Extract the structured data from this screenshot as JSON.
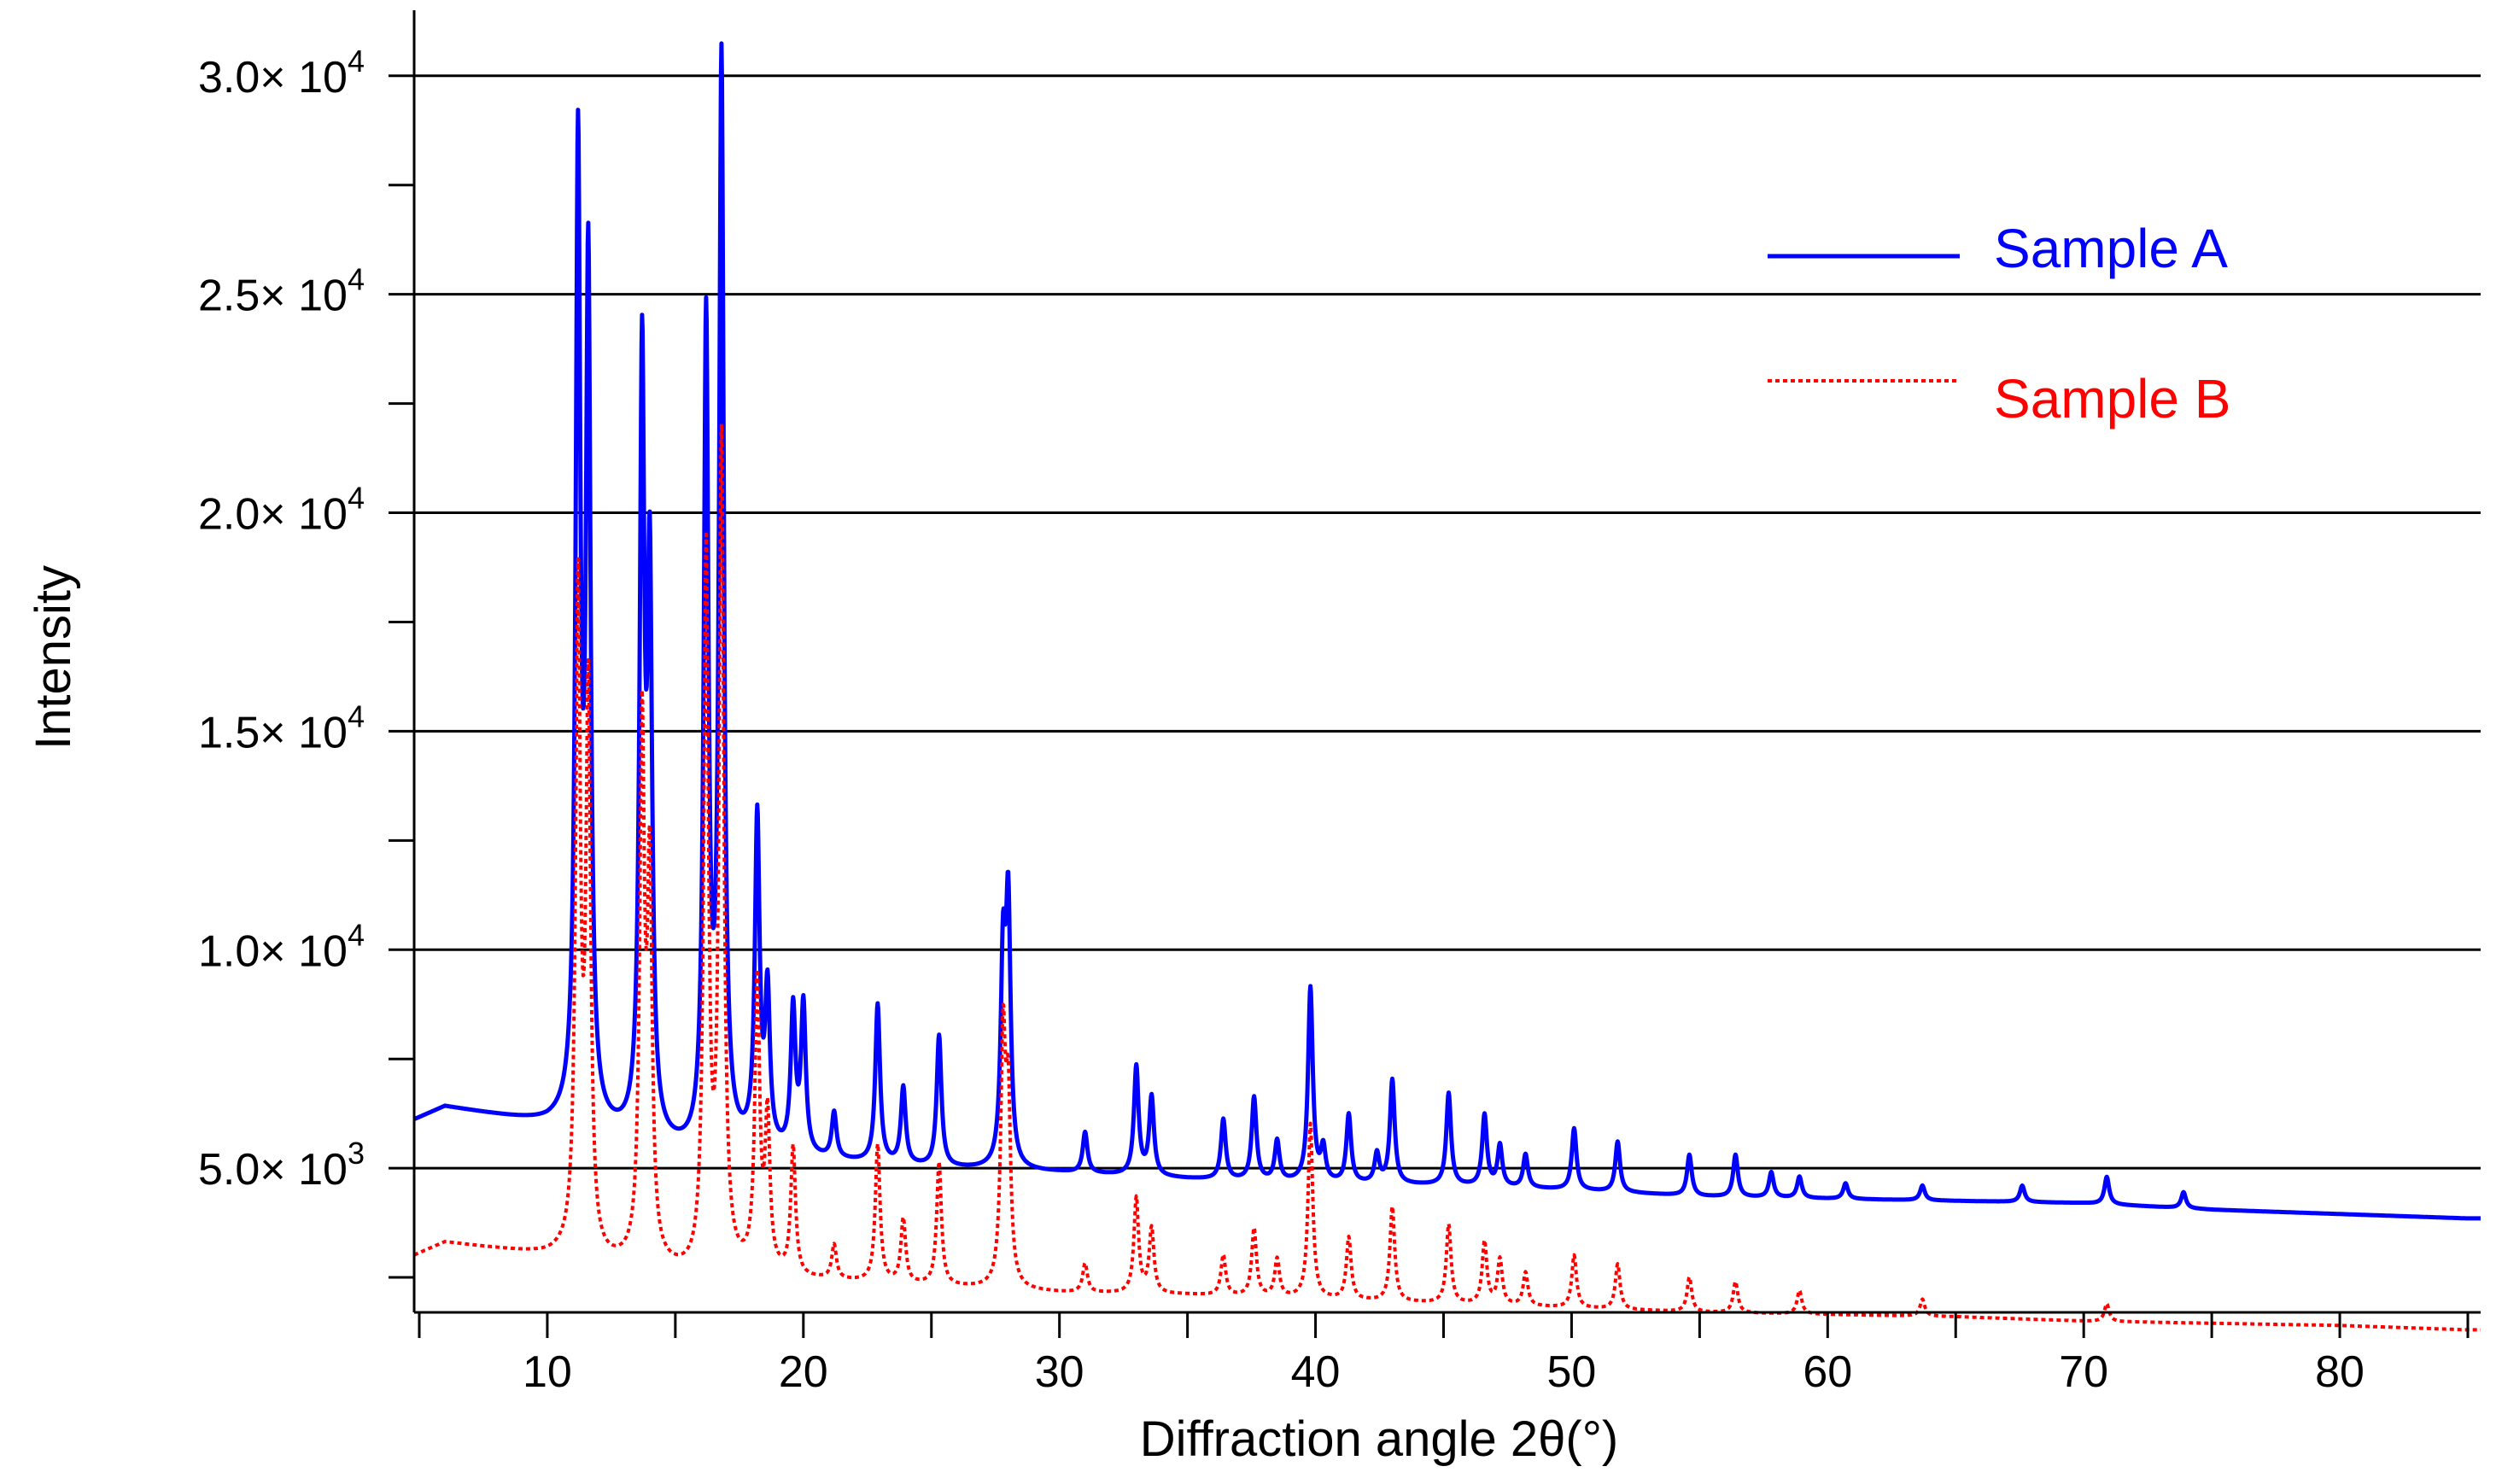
{
  "chart_data": {
    "type": "line",
    "title": "",
    "xlabel": "Diffraction angle 2θ(°)",
    "ylabel": "Intensity",
    "xlim": [
      4.8,
      85.5
    ],
    "ylim": [
      1700,
      31500
    ],
    "x_ticks": [
      10,
      20,
      30,
      40,
      50,
      60,
      70,
      80
    ],
    "x_tick_labels": [
      "10",
      "20",
      "30",
      "40",
      "50",
      "60",
      "70",
      "80"
    ],
    "y_ticks": [
      5000,
      10000,
      15000,
      20000,
      25000,
      30000
    ],
    "y_tick_mantissas": [
      "5.0",
      "1.0",
      "1.5",
      "2.0",
      "2.5",
      "3.0"
    ],
    "y_tick_times": "× 10",
    "y_tick_exponents": [
      "3",
      "4",
      "4",
      "4",
      "4",
      "4"
    ],
    "grid": "horizontal lines at major y ticks",
    "legend_position": "top-right",
    "series": [
      {
        "name": "Sample A",
        "color": "#0000ff",
        "style": "solid",
        "baseline": [
          [
            4.8,
            6100
          ],
          [
            6,
            6400
          ],
          [
            8,
            6200
          ],
          [
            10,
            6000
          ],
          [
            11,
            6000
          ],
          [
            12,
            5800
          ],
          [
            14,
            5500
          ],
          [
            16,
            5200
          ],
          [
            18,
            5400
          ],
          [
            20,
            5200
          ],
          [
            25,
            5000
          ],
          [
            30,
            4900
          ],
          [
            35,
            4750
          ],
          [
            40,
            4650
          ],
          [
            45,
            4600
          ],
          [
            50,
            4500
          ],
          [
            55,
            4350
          ],
          [
            60,
            4300
          ],
          [
            65,
            4250
          ],
          [
            70,
            4200
          ],
          [
            75,
            4050
          ],
          [
            80,
            3950
          ],
          [
            85,
            3850
          ]
        ],
        "peaks": [
          [
            11.2,
            27800
          ],
          [
            11.6,
            25000
          ],
          [
            13.7,
            22900
          ],
          [
            14.0,
            17800
          ],
          [
            16.2,
            24000
          ],
          [
            16.8,
            30000
          ],
          [
            18.2,
            12800
          ],
          [
            18.6,
            8800
          ],
          [
            19.6,
            8500
          ],
          [
            20.0,
            8600
          ],
          [
            21.2,
            6200
          ],
          [
            22.9,
            8700
          ],
          [
            23.9,
            6800
          ],
          [
            25.3,
            8000
          ],
          [
            27.8,
            9500
          ],
          [
            28.0,
            10700
          ],
          [
            31.0,
            5800
          ],
          [
            33.0,
            7300
          ],
          [
            33.6,
            6600
          ],
          [
            36.4,
            6100
          ],
          [
            37.6,
            6600
          ],
          [
            38.5,
            5600
          ],
          [
            39.8,
            9100
          ],
          [
            40.3,
            5400
          ],
          [
            41.3,
            6200
          ],
          [
            42.4,
            5300
          ],
          [
            43.0,
            7000
          ],
          [
            45.2,
            6700
          ],
          [
            46.6,
            6200
          ],
          [
            47.2,
            5500
          ],
          [
            48.2,
            5300
          ],
          [
            50.1,
            5900
          ],
          [
            51.8,
            5600
          ],
          [
            54.6,
            5300
          ],
          [
            56.4,
            5300
          ],
          [
            57.8,
            4900
          ],
          [
            58.9,
            4800
          ],
          [
            60.7,
            4650
          ],
          [
            63.7,
            4600
          ],
          [
            67.6,
            4600
          ],
          [
            70.9,
            4800
          ],
          [
            73.9,
            4450
          ]
        ]
      },
      {
        "name": "Sample B",
        "color": "#ff0000",
        "style": "dotted",
        "baseline": [
          [
            4.8,
            3000
          ],
          [
            6,
            3300
          ],
          [
            8,
            3150
          ],
          [
            10,
            3000
          ],
          [
            11,
            3000
          ],
          [
            12,
            2800
          ],
          [
            14,
            2750
          ],
          [
            16,
            2450
          ],
          [
            18,
            2650
          ],
          [
            20,
            2450
          ],
          [
            25,
            2300
          ],
          [
            30,
            2150
          ],
          [
            35,
            2100
          ],
          [
            40,
            2000
          ],
          [
            45,
            1900
          ],
          [
            50,
            1800
          ],
          [
            55,
            1700
          ],
          [
            60,
            1650
          ],
          [
            65,
            1600
          ],
          [
            70,
            1500
          ],
          [
            75,
            1450
          ],
          [
            80,
            1400
          ],
          [
            85,
            1300
          ]
        ],
        "peaks": [
          [
            11.2,
            18000
          ],
          [
            11.6,
            15500
          ],
          [
            13.7,
            14800
          ],
          [
            14.0,
            11300
          ],
          [
            16.2,
            18800
          ],
          [
            16.8,
            21400
          ],
          [
            18.2,
            9100
          ],
          [
            18.6,
            6000
          ],
          [
            19.6,
            5400
          ],
          [
            21.2,
            3200
          ],
          [
            22.9,
            5500
          ],
          [
            23.9,
            3800
          ],
          [
            25.3,
            5100
          ],
          [
            27.8,
            7800
          ],
          [
            28.0,
            6200
          ],
          [
            31.0,
            2800
          ],
          [
            33.0,
            4300
          ],
          [
            33.6,
            3600
          ],
          [
            36.4,
            3000
          ],
          [
            37.6,
            3600
          ],
          [
            38.5,
            2900
          ],
          [
            39.8,
            6000
          ],
          [
            41.3,
            3400
          ],
          [
            43.0,
            4100
          ],
          [
            45.2,
            3700
          ],
          [
            46.6,
            3300
          ],
          [
            47.2,
            2900
          ],
          [
            48.2,
            2600
          ],
          [
            50.1,
            3000
          ],
          [
            51.8,
            2800
          ],
          [
            54.6,
            2500
          ],
          [
            56.4,
            2400
          ],
          [
            58.9,
            2200
          ],
          [
            63.7,
            2000
          ],
          [
            70.9,
            1900
          ]
        ]
      }
    ]
  }
}
